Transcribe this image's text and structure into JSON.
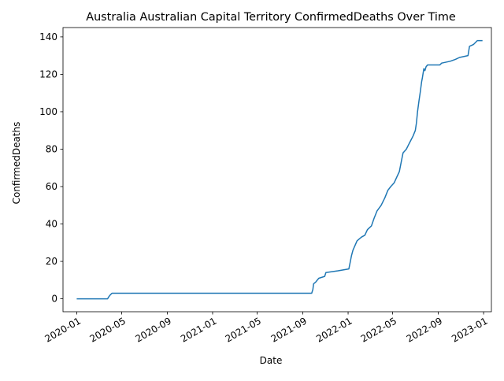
{
  "chart_data": {
    "type": "line",
    "title": "Australia Australian Capital Territory ConfirmedDeaths Over Time",
    "xlabel": "Date",
    "ylabel": "ConfirmedDeaths",
    "xlim": [
      "2019-11-25",
      "2023-01-22"
    ],
    "ylim": [
      -6.9,
      145.0
    ],
    "x_ticks": [
      "2020-01",
      "2020-05",
      "2020-09",
      "2021-01",
      "2021-05",
      "2021-09",
      "2022-01",
      "2022-05",
      "2022-09",
      "2023-01"
    ],
    "y_ticks": [
      0,
      20,
      40,
      60,
      80,
      100,
      120,
      140
    ],
    "grid": false,
    "legend": "none",
    "colors": {
      "line": "#1f77b4"
    },
    "series": [
      {
        "points": [
          [
            "2020-01-01",
            0
          ],
          [
            "2020-03-24",
            0
          ],
          [
            "2020-03-27",
            1
          ],
          [
            "2020-03-31",
            2
          ],
          [
            "2020-04-05",
            3
          ],
          [
            "2021-09-25",
            3
          ],
          [
            "2021-09-28",
            5
          ],
          [
            "2021-09-30",
            8
          ],
          [
            "2021-10-06",
            9
          ],
          [
            "2021-10-14",
            11
          ],
          [
            "2021-10-30",
            12
          ],
          [
            "2021-11-02",
            14
          ],
          [
            "2021-12-05",
            15
          ],
          [
            "2022-01-03",
            16
          ],
          [
            "2022-01-07",
            20
          ],
          [
            "2022-01-10",
            23
          ],
          [
            "2022-01-14",
            26
          ],
          [
            "2022-01-25",
            31
          ],
          [
            "2022-02-06",
            33
          ],
          [
            "2022-02-15",
            34
          ],
          [
            "2022-02-22",
            37
          ],
          [
            "2022-03-05",
            39
          ],
          [
            "2022-03-12",
            43
          ],
          [
            "2022-03-20",
            47
          ],
          [
            "2022-03-31",
            50
          ],
          [
            "2022-04-10",
            54
          ],
          [
            "2022-04-18",
            58
          ],
          [
            "2022-04-26",
            60
          ],
          [
            "2022-05-05",
            62
          ],
          [
            "2022-05-12",
            65
          ],
          [
            "2022-05-19",
            68
          ],
          [
            "2022-05-25",
            74
          ],
          [
            "2022-05-29",
            78
          ],
          [
            "2022-06-07",
            80
          ],
          [
            "2022-06-12",
            82
          ],
          [
            "2022-06-17",
            84
          ],
          [
            "2022-06-25",
            87
          ],
          [
            "2022-07-01",
            90
          ],
          [
            "2022-07-04",
            94
          ],
          [
            "2022-07-07",
            100
          ],
          [
            "2022-07-11",
            106
          ],
          [
            "2022-07-14",
            110
          ],
          [
            "2022-07-18",
            116
          ],
          [
            "2022-07-20",
            118
          ],
          [
            "2022-07-24",
            123
          ],
          [
            "2022-07-27",
            122
          ],
          [
            "2022-07-30",
            124
          ],
          [
            "2022-08-03",
            125
          ],
          [
            "2022-09-05",
            125
          ],
          [
            "2022-09-10",
            126
          ],
          [
            "2022-10-03",
            127
          ],
          [
            "2022-10-17",
            128
          ],
          [
            "2022-10-28",
            129
          ],
          [
            "2022-11-20",
            130
          ],
          [
            "2022-11-24",
            135
          ],
          [
            "2022-12-05",
            136
          ],
          [
            "2022-12-15",
            138
          ],
          [
            "2022-12-29",
            138
          ]
        ]
      }
    ]
  }
}
